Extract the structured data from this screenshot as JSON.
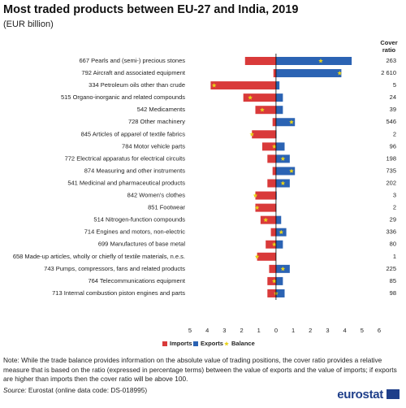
{
  "chart_data": {
    "type": "diverging-bar",
    "title": "Most traded products between EU-27 and India, 2019",
    "subtitle": "(EUR billion)",
    "categories": [
      "667 Pearls and (semi-) precious stones",
      "792 Aircraft and associated equipment",
      "334 Petroleum oils other than crude",
      "515 Organo-inorganic and related compounds",
      "542 Medicaments",
      "728 Other machinery",
      "845 Articles of apparel of textile fabrics",
      "784 Motor vehicle parts",
      "772 Electrical apparatus for electrical circuits",
      "874 Measuring and other instruments",
      "541 Medicinal and pharmaceutical products",
      "842 Women's clothes",
      "851 Footwear",
      "514 Nitrogen-function compounds",
      "714 Engines and motors, non-electric",
      "699 Manufactures of base metal",
      "658 Made-up articles, wholly or chiefly of textile materials, n.e.s.",
      "743 Pumps, compressors, fans and related products",
      "764 Telecommunications equipment",
      "713 Internal combustion piston engines and parts"
    ],
    "series": [
      {
        "name": "Imports",
        "color": "#d93a3a",
        "style": "bar",
        "values": [
          -1.8,
          -0.15,
          -3.8,
          -1.9,
          -1.2,
          -0.2,
          -1.4,
          -0.8,
          -0.5,
          -0.2,
          -0.5,
          -1.2,
          -1.2,
          -0.9,
          -0.3,
          -0.6,
          -1.1,
          -0.4,
          -0.5,
          -0.5
        ]
      },
      {
        "name": "Exports",
        "color": "#2b63b3",
        "style": "bar",
        "values": [
          4.4,
          3.8,
          0.2,
          0.4,
          0.4,
          1.1,
          0.03,
          0.5,
          0.8,
          1.1,
          0.8,
          0.04,
          0.02,
          0.3,
          0.6,
          0.4,
          0.01,
          0.8,
          0.4,
          0.5
        ]
      },
      {
        "name": "Balance",
        "color": "#e8d21a",
        "style": "star",
        "values": [
          2.6,
          3.7,
          -3.6,
          -1.5,
          -0.8,
          0.9,
          -1.4,
          -0.1,
          0.4,
          0.9,
          0.4,
          -1.2,
          -1.1,
          -0.6,
          0.3,
          -0.1,
          -1.1,
          0.4,
          -0.1,
          0.0
        ]
      }
    ],
    "cover_ratio": {
      "title": "Cover ratio",
      "values": [
        263,
        2610,
        5,
        24,
        39,
        546,
        2,
        96,
        198,
        735,
        202,
        3,
        2,
        29,
        336,
        80,
        1,
        225,
        85,
        98
      ],
      "value_labels": [
        "263",
        "2 610",
        "5",
        "24",
        "39",
        "546",
        "2",
        "96",
        "198",
        "735",
        "202",
        "3",
        "2",
        "29",
        "336",
        "80",
        "1",
        "225",
        "85",
        "98"
      ]
    },
    "xlim": [
      -5,
      6
    ],
    "xticks": [
      {
        "value": -5,
        "label": "5"
      },
      {
        "value": -4,
        "label": "4"
      },
      {
        "value": -3,
        "label": "3"
      },
      {
        "value": -2,
        "label": "2"
      },
      {
        "value": -1,
        "label": "1"
      },
      0,
      1,
      2,
      3,
      4,
      5,
      6
    ],
    "grid": false,
    "note": "Note: While the trade balance provides information on the absolute value of trading positions, the cover ratio provides a relative measure that is based on the ratio (expressed in percentage terms) between the value of exports and the value of imports; if exports are higher than imports then the cover ratio will be above 100.",
    "source_label": "Source:",
    "source": "Eurostat (online data code: DS-018995)",
    "logo": "eurostat"
  }
}
